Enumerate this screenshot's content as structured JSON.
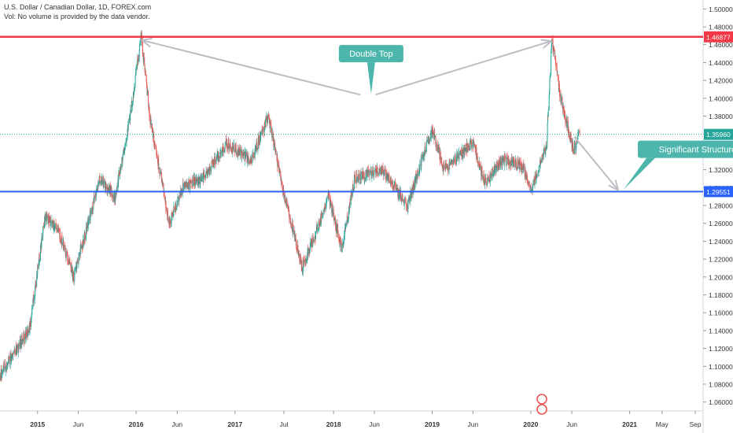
{
  "header": {
    "title": "U.S. Dollar / Canadian Dollar, 1D, FOREX.com",
    "volume_note": "Vol: No volume is provided by the data vendor."
  },
  "colors": {
    "up": "#26a69a",
    "down": "#ef5350",
    "resistance": "#f23645",
    "support": "#2962ff",
    "current_price": "#26a69a",
    "annotation": "#4db6ac",
    "arrow": "#bdbdc4"
  },
  "chart_data": {
    "type": "candlestick",
    "symbol": "USDCAD",
    "ylim": [
      1.05,
      1.51
    ],
    "yticks": [
      "1.06000",
      "1.08000",
      "1.10000",
      "1.12000",
      "1.14000",
      "1.16000",
      "1.18000",
      "1.20000",
      "1.22000",
      "1.24000",
      "1.26000",
      "1.28000",
      "1.30000",
      "1.32000",
      "1.34000",
      "1.36000",
      "1.38000",
      "1.40000",
      "1.42000",
      "1.44000",
      "1.46000",
      "1.48000",
      "1.50000"
    ],
    "xlim": [
      "2014-08-15",
      "2021-09-30"
    ],
    "xticks": [
      {
        "date": "2015-01-01",
        "label": "2015",
        "bold": true
      },
      {
        "date": "2015-06-01",
        "label": "Jun",
        "bold": false
      },
      {
        "date": "2016-01-01",
        "label": "2016",
        "bold": true
      },
      {
        "date": "2016-06-01",
        "label": "Jun",
        "bold": false
      },
      {
        "date": "2017-01-01",
        "label": "2017",
        "bold": true
      },
      {
        "date": "2017-07-01",
        "label": "Jul",
        "bold": false
      },
      {
        "date": "2018-01-01",
        "label": "2018",
        "bold": true
      },
      {
        "date": "2018-06-01",
        "label": "Jun",
        "bold": false
      },
      {
        "date": "2019-01-01",
        "label": "2019",
        "bold": true
      },
      {
        "date": "2019-06-01",
        "label": "Jun",
        "bold": false
      },
      {
        "date": "2020-01-01",
        "label": "2020",
        "bold": true
      },
      {
        "date": "2020-06-01",
        "label": "Jun",
        "bold": false
      },
      {
        "date": "2021-01-01",
        "label": "2021",
        "bold": true
      },
      {
        "date": "2021-05-01",
        "label": "May",
        "bold": false
      },
      {
        "date": "2021-09-01",
        "label": "Sep",
        "bold": false
      }
    ],
    "price_path": [
      {
        "date": "2014-08-15",
        "price": 1.09
      },
      {
        "date": "2014-12-01",
        "price": 1.14
      },
      {
        "date": "2015-01-30",
        "price": 1.27
      },
      {
        "date": "2015-03-20",
        "price": 1.25
      },
      {
        "date": "2015-05-15",
        "price": 1.2
      },
      {
        "date": "2015-08-20",
        "price": 1.31
      },
      {
        "date": "2015-10-15",
        "price": 1.29
      },
      {
        "date": "2015-12-10",
        "price": 1.38
      },
      {
        "date": "2016-01-20",
        "price": 1.4688
      },
      {
        "date": "2016-02-20",
        "price": 1.38
      },
      {
        "date": "2016-05-03",
        "price": 1.26
      },
      {
        "date": "2016-06-20",
        "price": 1.3
      },
      {
        "date": "2016-09-01",
        "price": 1.31
      },
      {
        "date": "2016-12-01",
        "price": 1.35
      },
      {
        "date": "2017-03-01",
        "price": 1.33
      },
      {
        "date": "2017-05-05",
        "price": 1.38
      },
      {
        "date": "2017-06-25",
        "price": 1.3
      },
      {
        "date": "2017-09-08",
        "price": 1.21
      },
      {
        "date": "2017-12-15",
        "price": 1.29
      },
      {
        "date": "2018-01-31",
        "price": 1.23
      },
      {
        "date": "2018-03-20",
        "price": 1.31
      },
      {
        "date": "2018-07-01",
        "price": 1.32
      },
      {
        "date": "2018-10-01",
        "price": 1.28
      },
      {
        "date": "2018-12-31",
        "price": 1.365
      },
      {
        "date": "2019-02-15",
        "price": 1.32
      },
      {
        "date": "2019-05-31",
        "price": 1.35
      },
      {
        "date": "2019-07-15",
        "price": 1.305
      },
      {
        "date": "2019-09-15",
        "price": 1.33
      },
      {
        "date": "2019-12-01",
        "price": 1.325
      },
      {
        "date": "2020-01-01",
        "price": 1.297
      },
      {
        "date": "2020-02-28",
        "price": 1.345
      },
      {
        "date": "2020-03-19",
        "price": 1.4668
      },
      {
        "date": "2020-04-20",
        "price": 1.4
      },
      {
        "date": "2020-06-08",
        "price": 1.34
      },
      {
        "date": "2020-06-30",
        "price": 1.36
      }
    ],
    "resistance_level": {
      "value": 1.46877,
      "label": "1.46877"
    },
    "support_level": {
      "value": 1.29551,
      "label": "1.29551"
    },
    "current_price": {
      "value": 1.3596,
      "label": "1.35960"
    },
    "annotations": [
      {
        "text": "Double Top",
        "anchor": {
          "date": "2018-05-20",
          "price": 1.405
        }
      },
      {
        "text": "Significant Structure",
        "anchor": {
          "date": "2020-12-10",
          "price": 1.298
        }
      }
    ],
    "arrows": [
      {
        "from": {
          "date": "2018-04-10",
          "price": 1.404
        },
        "to": {
          "date": "2016-01-22",
          "price": 1.465
        }
      },
      {
        "from": {
          "date": "2018-06-05",
          "price": 1.404
        },
        "to": {
          "date": "2020-03-17",
          "price": 1.464
        }
      },
      {
        "from": {
          "date": "2020-06-10",
          "price": 1.357
        },
        "to": {
          "date": "2020-11-20",
          "price": 1.297
        }
      }
    ]
  }
}
